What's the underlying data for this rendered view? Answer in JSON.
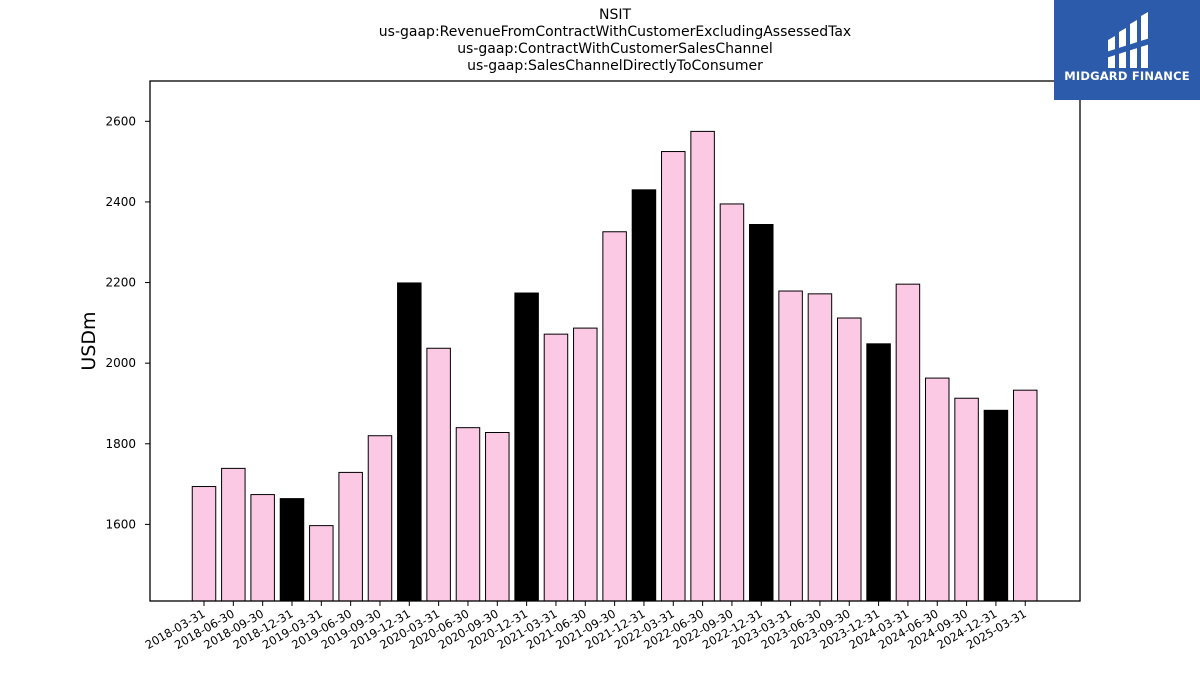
{
  "title_lines": [
    "NSIT",
    "us-gaap:RevenueFromContractWithCustomerExcludingAssessedTax",
    "us-gaap:ContractWithCustomerSalesChannel",
    "us-gaap:SalesChannelDirectlyToConsumer"
  ],
  "logo": {
    "text": "MIDGARD FINANCE",
    "background": "#2c5bab"
  },
  "chart_data": {
    "type": "bar",
    "ylabel": "USDm",
    "xlabel": "",
    "ylim": [
      1410,
      2700
    ],
    "yticks": [
      1600,
      1800,
      2000,
      2200,
      2400,
      2600
    ],
    "colors": {
      "quarter": "#fbc9e4",
      "year_end": "#000000",
      "edge": "#000000"
    },
    "categories": [
      "2018-03-31",
      "2018-06-30",
      "2018-09-30",
      "2018-12-31",
      "2019-03-31",
      "2019-06-30",
      "2019-09-30",
      "2019-12-31",
      "2020-03-31",
      "2020-06-30",
      "2020-09-30",
      "2020-12-31",
      "2021-03-31",
      "2021-06-30",
      "2021-09-30",
      "2021-12-31",
      "2022-03-31",
      "2022-06-30",
      "2022-09-30",
      "2022-12-31",
      "2023-03-31",
      "2023-06-30",
      "2023-09-30",
      "2023-12-31",
      "2024-03-31",
      "2024-06-30",
      "2024-09-30",
      "2024-12-31",
      "2025-03-31"
    ],
    "values": [
      1694,
      1739,
      1674,
      1664,
      1597,
      1729,
      1820,
      2199,
      2037,
      1840,
      1828,
      2174,
      2072,
      2087,
      2326,
      2430,
      2525,
      2575,
      2395,
      2344,
      2179,
      2172,
      2112,
      2048,
      2196,
      1963,
      1913,
      1883,
      1933
    ],
    "year_end": [
      false,
      false,
      false,
      true,
      false,
      false,
      false,
      true,
      false,
      false,
      false,
      true,
      false,
      false,
      false,
      true,
      false,
      false,
      false,
      true,
      false,
      false,
      false,
      true,
      false,
      false,
      false,
      true,
      false
    ]
  }
}
